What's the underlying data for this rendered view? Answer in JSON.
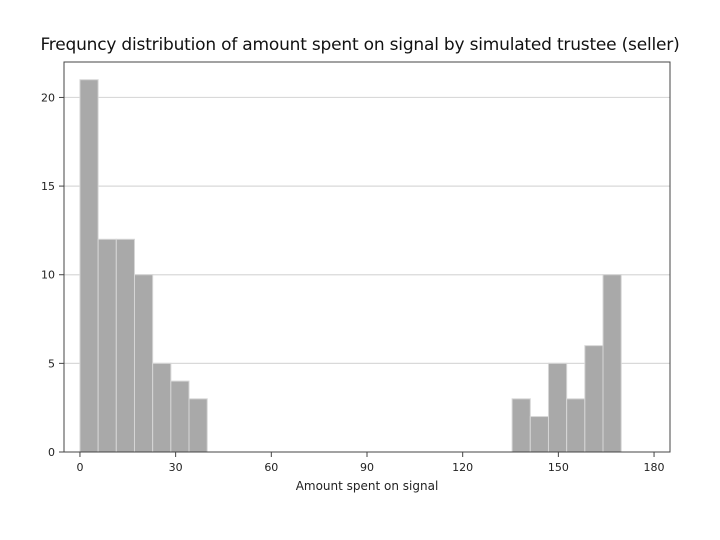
{
  "chart_data": {
    "type": "bar",
    "title": "Frequncy distribution of amount spent on signal by simulated trustee (seller)",
    "xlabel": "Amount spent on signal",
    "ylabel": "",
    "xlim": [
      -5,
      185
    ],
    "ylim": [
      0,
      22
    ],
    "xticks": [
      0,
      30,
      60,
      90,
      120,
      150,
      180
    ],
    "yticks": [
      0,
      5,
      10,
      15,
      20
    ],
    "bin_width": 5.7,
    "grid": true,
    "bins": [
      {
        "start": 0.0,
        "end": 5.7,
        "value": 21
      },
      {
        "start": 5.7,
        "end": 11.4,
        "value": 12
      },
      {
        "start": 11.4,
        "end": 17.1,
        "value": 12
      },
      {
        "start": 17.1,
        "end": 22.8,
        "value": 10
      },
      {
        "start": 22.8,
        "end": 28.5,
        "value": 5
      },
      {
        "start": 28.5,
        "end": 34.2,
        "value": 4
      },
      {
        "start": 34.2,
        "end": 39.9,
        "value": 3
      },
      {
        "start": 135.5,
        "end": 141.2,
        "value": 3
      },
      {
        "start": 141.2,
        "end": 146.9,
        "value": 2
      },
      {
        "start": 146.9,
        "end": 152.6,
        "value": 5
      },
      {
        "start": 152.6,
        "end": 158.3,
        "value": 3
      },
      {
        "start": 158.3,
        "end": 164.0,
        "value": 6
      },
      {
        "start": 164.0,
        "end": 169.7,
        "value": 10
      }
    ],
    "colors": {
      "bar_fill": "#a9a9a9",
      "bar_stroke": "#d6d6d6",
      "grid": "#d9d9d9",
      "frame": "#444444"
    }
  }
}
